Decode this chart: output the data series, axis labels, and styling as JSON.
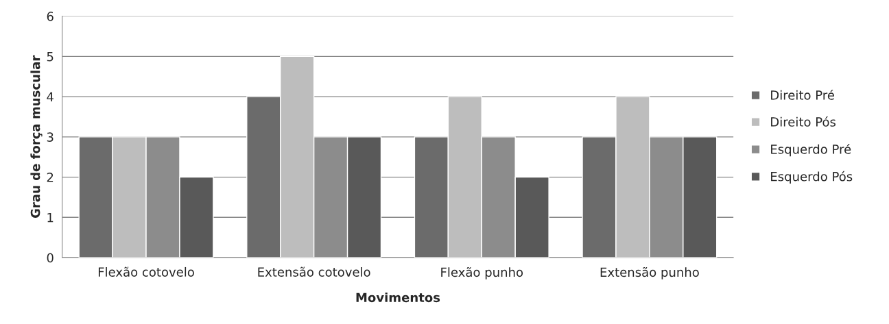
{
  "chart_data": {
    "type": "bar",
    "xlabel": "Movimentos",
    "ylabel": "Grau de força muscular",
    "categories": [
      "Flexão cotovelo",
      "Extensão cotovelo",
      "Flexão punho",
      "Extensão punho"
    ],
    "series": [
      {
        "name": "Direito Pré",
        "color": "#6b6b6b",
        "values": [
          3,
          4,
          3,
          3
        ]
      },
      {
        "name": "Direito Pós",
        "color": "#bdbdbd",
        "values": [
          3,
          5,
          4,
          4
        ]
      },
      {
        "name": "Esquerdo Pré",
        "color": "#8c8c8c",
        "values": [
          3,
          3,
          3,
          3
        ]
      },
      {
        "name": "Esquerdo Pós",
        "color": "#595959",
        "values": [
          2,
          3,
          2,
          3
        ]
      }
    ],
    "ylim": [
      0,
      6
    ],
    "yticks": [
      0,
      1,
      2,
      3,
      4,
      5,
      6
    ],
    "grid": "y",
    "legend": "right"
  }
}
